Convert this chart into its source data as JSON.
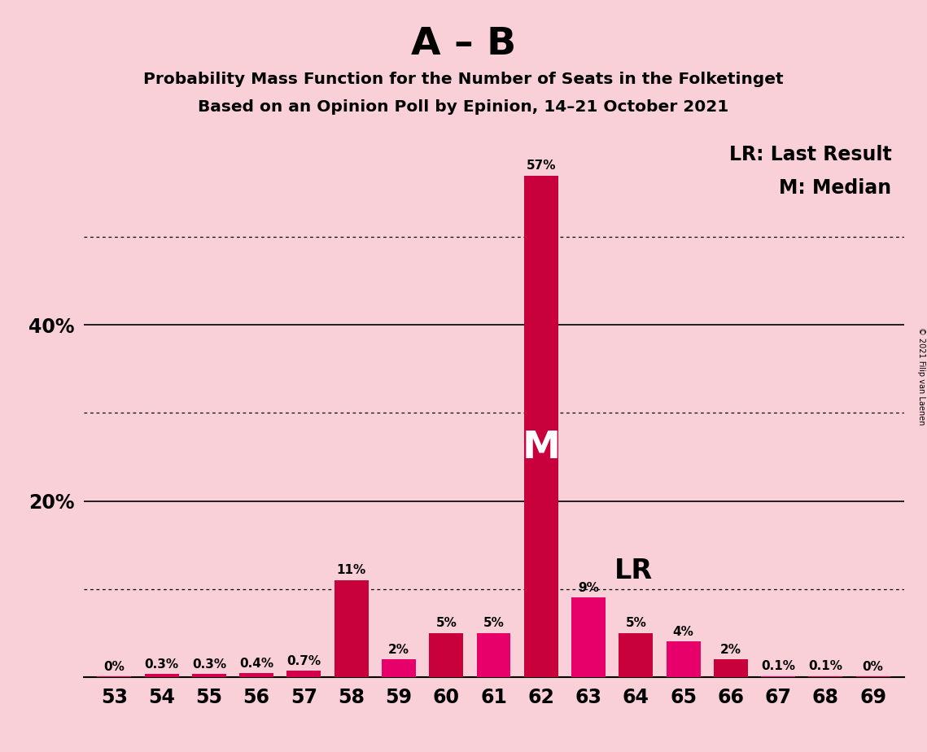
{
  "title_main": "A – B",
  "title_sub1": "Probability Mass Function for the Number of Seats in the Folketinget",
  "title_sub2": "Based on an Opinion Poll by Epinion, 14–21 October 2021",
  "copyright_text": "© 2021 Filip van Laenen",
  "categories": [
    53,
    54,
    55,
    56,
    57,
    58,
    59,
    60,
    61,
    62,
    63,
    64,
    65,
    66,
    67,
    68,
    69
  ],
  "values": [
    0.05,
    0.3,
    0.3,
    0.4,
    0.7,
    11,
    2,
    5,
    5,
    57,
    9,
    5,
    4,
    2,
    0.1,
    0.1,
    0.05
  ],
  "labels": [
    "0%",
    "0.3%",
    "0.3%",
    "0.4%",
    "0.7%",
    "11%",
    "2%",
    "5%",
    "5%",
    "57%",
    "9%",
    "5%",
    "4%",
    "2%",
    "0.1%",
    "0.1%",
    "0%"
  ],
  "bar_colors": [
    "#d4004c",
    "#d4004c",
    "#d4004c",
    "#d4004c",
    "#d4004c",
    "#c8003c",
    "#e8006a",
    "#c8003c",
    "#e8006a",
    "#c8003c",
    "#e8006a",
    "#c8003c",
    "#e8006a",
    "#c8003c",
    "#e8006a",
    "#c8003c",
    "#c8003c"
  ],
  "median_bar_idx": 9,
  "lr_bar_idx": 10,
  "background_color": "#f9d0d8",
  "solid_gridlines": [
    0,
    20,
    40
  ],
  "dotted_gridlines": [
    10,
    30,
    50
  ],
  "ylim_max": 62,
  "label_fontsize": 11,
  "ytick_positions": [
    20,
    40
  ],
  "ytick_labels": [
    "20%",
    "40%"
  ],
  "xtick_fontsize": 17,
  "ytick_fontsize": 17
}
